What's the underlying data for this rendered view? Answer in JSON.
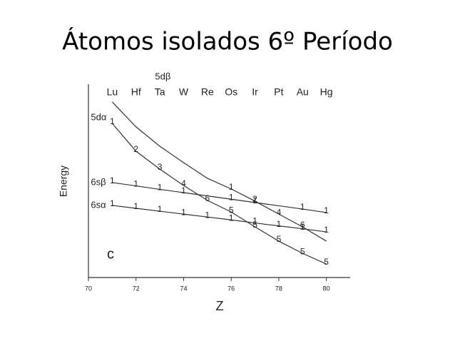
{
  "slide_title": "Átomos isolados 6º Período",
  "chart_data": {
    "type": "line",
    "x_label": "Z",
    "y_label": "Energy",
    "panel_label": "c",
    "x": [
      71,
      72,
      73,
      74,
      75,
      76,
      77,
      78,
      79,
      80
    ],
    "top_labels": [
      "Lu",
      "Hf",
      "Ta",
      "W",
      "Re",
      "Os",
      "Ir",
      "Pt",
      "Au",
      "Hg"
    ],
    "xlim": [
      70,
      81
    ],
    "xticks": [
      70,
      72,
      74,
      76,
      78,
      80
    ],
    "ylim": [
      0,
      100
    ],
    "series": [
      {
        "name": "5dα",
        "color": "#333333",
        "values": [
          79.7,
          65.3,
          56.1,
          47.6,
          39.9,
          33.9,
          26.2,
          18.8,
          12.5,
          7.0
        ],
        "point_labels": [
          "1",
          "2",
          "3",
          "4",
          "6",
          "5",
          "5",
          "5",
          "5",
          "5"
        ]
      },
      {
        "name": "5dβ",
        "color": "#333333",
        "values": [
          90.8,
          77.9,
          67.9,
          59.4,
          51.3,
          45.8,
          39.5,
          32.8,
          26.2,
          18.8
        ],
        "point_labels": [
          null,
          null,
          null,
          null,
          null,
          "1",
          "2",
          "4",
          "6",
          null
        ]
      },
      {
        "name": "6sβ",
        "color": "#333333",
        "values": [
          49.1,
          47.4,
          45.6,
          43.9,
          42.2,
          40.5,
          38.8,
          37.1,
          35.4,
          33.6
        ],
        "point_labels": [
          "1",
          "1",
          "1",
          "1",
          null,
          "1",
          "1",
          null,
          "1",
          "1"
        ]
      },
      {
        "name": "6sα",
        "color": "#333333",
        "values": [
          37.3,
          35.8,
          34.3,
          32.8,
          31.3,
          29.8,
          28.2,
          26.7,
          25.2,
          23.6
        ],
        "point_labels": [
          "1",
          "1",
          "1",
          "1",
          "1",
          "1",
          "1",
          "1",
          "1",
          "1"
        ]
      }
    ]
  }
}
